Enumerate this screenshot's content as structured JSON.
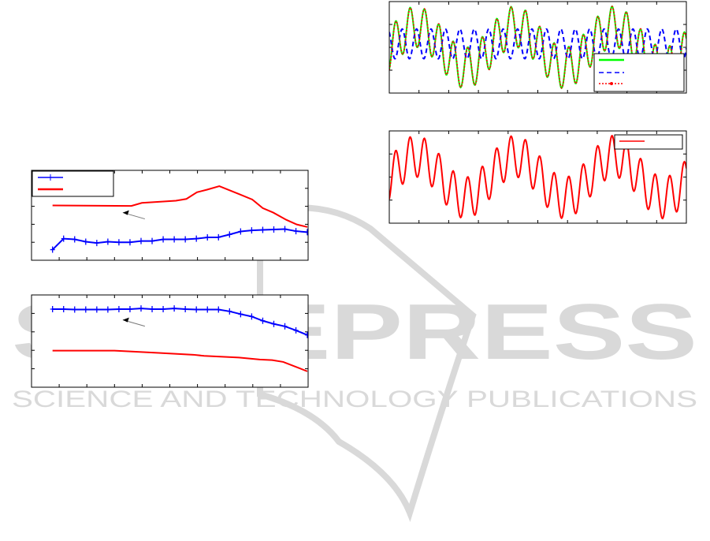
{
  "watermark": {
    "logo_text": "SCITEPRESS",
    "tagline": "SCIENCE AND TECHNOLOGY PUBLICATIONS",
    "color": "#d9d9d9"
  },
  "chart_data": [
    {
      "type": "line",
      "xlim": [
        0,
        10
      ],
      "ylim": [
        0,
        5
      ],
      "grid": false,
      "legend": "top-left",
      "annotation_arrow": true,
      "series": [
        {
          "color": "#0000ff",
          "marker": "plus",
          "x": [
            0.76,
            1.16,
            1.56,
            1.96,
            2.36,
            2.76,
            3.16,
            3.56,
            3.96,
            4.36,
            4.76,
            5.16,
            5.56,
            5.96,
            6.36,
            6.76,
            7.16,
            7.56,
            7.96,
            8.36,
            8.76,
            9.16,
            9.56,
            9.97
          ],
          "y": [
            0.59,
            1.2,
            1.16,
            1.03,
            0.96,
            1.03,
            1.0,
            1.0,
            1.07,
            1.07,
            1.16,
            1.16,
            1.16,
            1.2,
            1.27,
            1.28,
            1.43,
            1.6,
            1.66,
            1.69,
            1.71,
            1.73,
            1.62,
            1.56
          ]
        },
        {
          "color": "#ff0000",
          "marker": "none",
          "x": [
            0.76,
            3.61,
            3.99,
            5.22,
            5.6,
            5.98,
            6.36,
            6.79,
            7.5,
            7.98,
            8.36,
            8.74,
            9.21,
            9.59,
            9.97
          ],
          "y": [
            3.05,
            3.02,
            3.19,
            3.31,
            3.41,
            3.78,
            3.93,
            4.12,
            3.68,
            3.38,
            2.9,
            2.65,
            2.25,
            1.99,
            1.85
          ]
        }
      ]
    },
    {
      "type": "line",
      "xlim": [
        0,
        10
      ],
      "ylim": [
        0,
        5
      ],
      "grid": false,
      "annotation_arrow": true,
      "series": [
        {
          "color": "#0000ff",
          "marker": "plus",
          "x": [
            0.76,
            1.16,
            1.56,
            1.96,
            2.36,
            2.76,
            3.16,
            3.56,
            3.96,
            4.36,
            4.76,
            5.16,
            5.56,
            5.96,
            6.36,
            6.76,
            7.16,
            7.56,
            7.96,
            8.36,
            8.76,
            9.16,
            9.56,
            9.97
          ],
          "y": [
            4.23,
            4.23,
            4.21,
            4.21,
            4.21,
            4.21,
            4.23,
            4.23,
            4.27,
            4.23,
            4.23,
            4.27,
            4.23,
            4.21,
            4.21,
            4.21,
            4.11,
            3.96,
            3.83,
            3.6,
            3.43,
            3.3,
            3.08,
            2.83
          ]
        },
        {
          "color": "#ff0000",
          "marker": "none",
          "x": [
            0.76,
            3.0,
            4.6,
            5.85,
            6.24,
            7.5,
            8.25,
            8.7,
            9.1,
            9.55,
            9.97
          ],
          "y": [
            1.98,
            1.98,
            1.86,
            1.76,
            1.7,
            1.61,
            1.5,
            1.47,
            1.37,
            1.11,
            0.86
          ]
        }
      ]
    },
    {
      "type": "line",
      "xlim": [
        0,
        10
      ],
      "ylim": [
        -2,
        2
      ],
      "grid": false,
      "legend": "bottom-right",
      "series": [
        {
          "color": "#00ff00",
          "style": "solid",
          "components": [
            {
              "amp": 0.9,
              "freq": 2.06,
              "phase": -7.49
            },
            {
              "amp": 0.9,
              "freq": 0.3,
              "phase": -0.13
            }
          ]
        },
        {
          "color": "#0000ff",
          "style": "dashed",
          "offset": 0.15,
          "components": [
            {
              "amp": -0.65,
              "freq": 2.06,
              "phase": -7.2
            }
          ]
        },
        {
          "color": "#ff0000",
          "style": "dotted-marker",
          "components": [
            {
              "amp": 0.9,
              "freq": 2.06,
              "phase": -7.55
            },
            {
              "amp": 0.9,
              "freq": 0.3,
              "phase": -0.15
            }
          ]
        }
      ]
    },
    {
      "type": "line",
      "xlim": [
        0,
        10
      ],
      "ylim": [
        -2,
        2
      ],
      "grid": false,
      "legend": "top-right",
      "series": [
        {
          "color": "#ff0000",
          "style": "solid",
          "components": [
            {
              "amp": 0.9,
              "freq": 2.06,
              "phase": -7.49
            },
            {
              "amp": 0.9,
              "freq": 0.3,
              "phase": -0.13
            }
          ]
        }
      ]
    }
  ]
}
